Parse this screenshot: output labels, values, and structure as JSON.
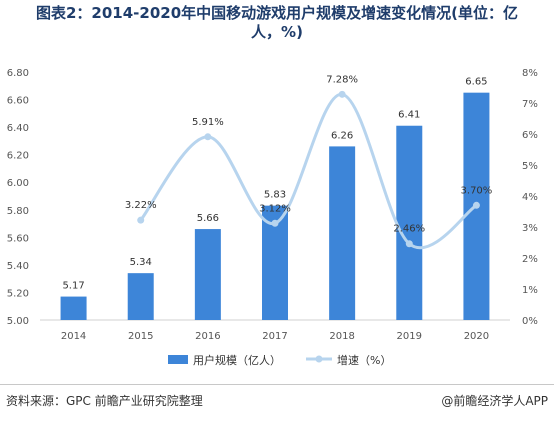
{
  "title": {
    "line1": "图表2：2014-2020年中国移动游戏用户规模及增速变化情况(单位：亿",
    "line2": "人，%)"
  },
  "source": "资料来源：GPC 前瞻产业研究院整理",
  "brand": "@前瞻经济学人APP",
  "colors": {
    "bar": "#3d85d8",
    "line": "#b7d4ee",
    "axis_text": "#555555",
    "title": "#1f3d6b"
  },
  "chart_data": {
    "type": "bar",
    "categories": [
      "2014",
      "2015",
      "2016",
      "2017",
      "2018",
      "2019",
      "2020"
    ],
    "series": [
      {
        "name": "用户规模（亿人）",
        "type": "bar",
        "axis": "left",
        "values": [
          5.17,
          5.34,
          5.66,
          5.83,
          6.26,
          6.41,
          6.65
        ],
        "labels": [
          "5.17",
          "5.34",
          "5.66",
          "5.83",
          "6.26",
          "6.41",
          "6.65"
        ]
      },
      {
        "name": "增速（%）",
        "type": "line",
        "axis": "right",
        "values": [
          null,
          3.22,
          5.91,
          3.12,
          7.28,
          2.46,
          3.7
        ],
        "labels": [
          "",
          "3.22%",
          "5.91%",
          "3.12%",
          "7.28%",
          "2.46%",
          "3.70%"
        ]
      }
    ],
    "y_left": {
      "min": 5.0,
      "max": 6.8,
      "ticks": [
        "5.00",
        "5.20",
        "5.40",
        "5.60",
        "5.80",
        "6.00",
        "6.20",
        "6.40",
        "6.60",
        "6.80"
      ]
    },
    "y_right": {
      "min": 0,
      "max": 8,
      "ticks": [
        "0%",
        "1%",
        "2%",
        "3%",
        "4%",
        "5%",
        "6%",
        "7%",
        "8%"
      ]
    },
    "legend": {
      "position": "bottom",
      "bar_label": "用户规模（亿人）",
      "line_label": "增速（%）"
    }
  }
}
